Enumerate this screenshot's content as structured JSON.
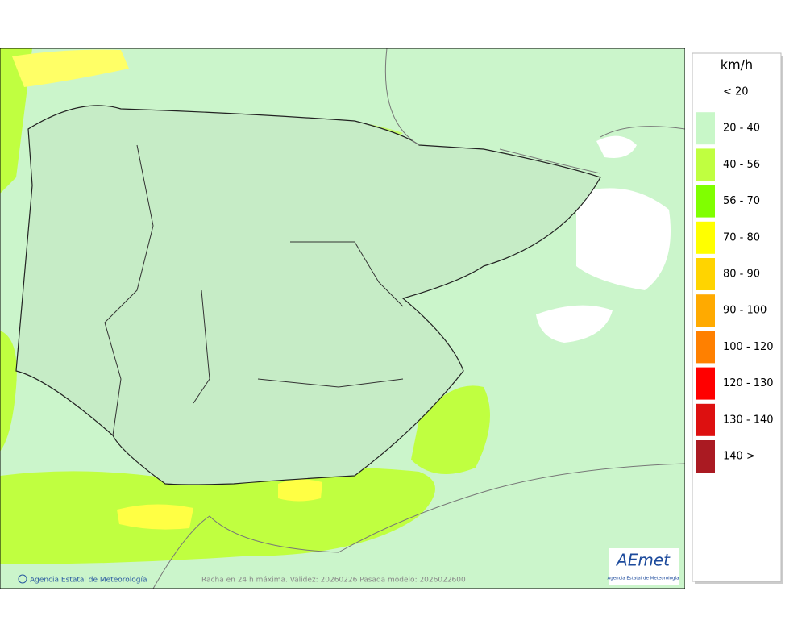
{
  "legend": {
    "unit": "km/h",
    "items": [
      {
        "label": "< 20"
      },
      {
        "label": "20 - 40",
        "color": "#c8f7c8"
      },
      {
        "label": "40 - 56",
        "color": "#c0ff40"
      },
      {
        "label": "56 - 70",
        "color": "#80ff00"
      },
      {
        "label": "70 - 80",
        "color": "#ffff00"
      },
      {
        "label": "80 - 90",
        "color": "#ffd400"
      },
      {
        "label": "90 - 100",
        "color": "#ffaa00"
      },
      {
        "label": "100 - 120",
        "color": "#ff8000"
      },
      {
        "label": "120 - 130",
        "color": "#ff0000"
      },
      {
        "label": "130 - 140",
        "color": "#dd1010"
      },
      {
        "label": "140 >",
        "color": "#aa1a22"
      }
    ]
  },
  "footer": {
    "credit": "Agencia Estatal de Meteorología",
    "caption": "Racha en 24 h máxima. Validez: 20260226 Pasada modelo: 2026022600"
  },
  "logo": {
    "name": "AEmet",
    "subtitle": "Agencia Estatal de Meteorología"
  }
}
